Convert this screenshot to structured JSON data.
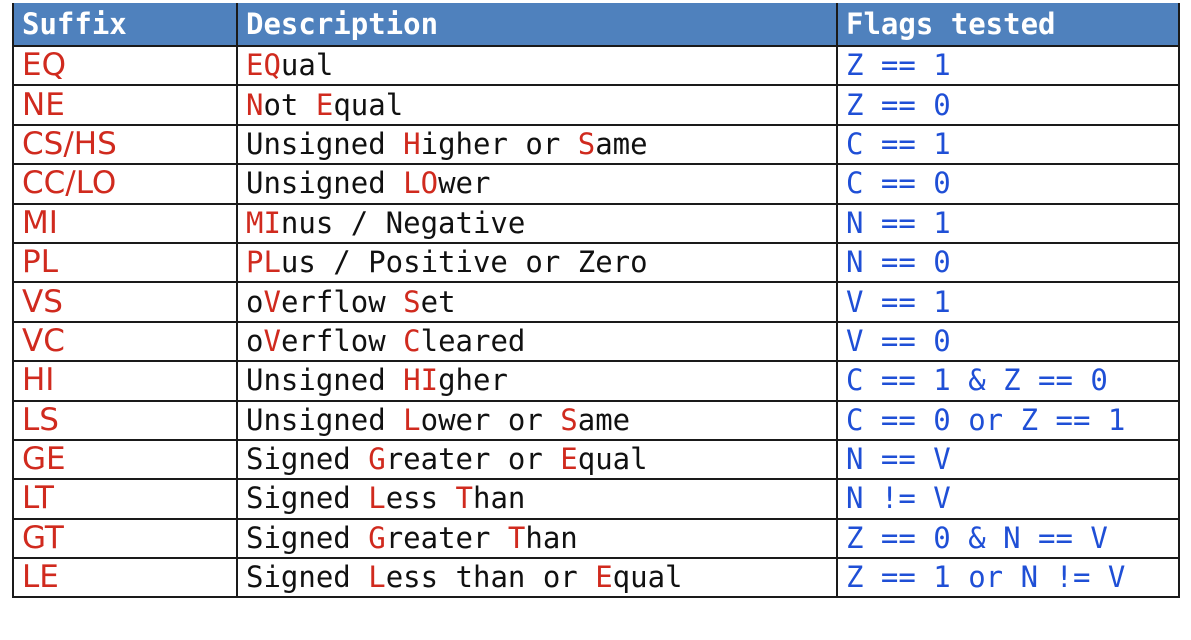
{
  "headers": {
    "suffix": "Suffix",
    "description": "Description",
    "flags": "Flags tested"
  },
  "colors": {
    "header_bg": "#4f81bd",
    "header_text": "#ffffff",
    "suffix_text": "#d02a1e",
    "highlight_text": "#d02a1e",
    "flags_text": "#1f4fd6",
    "border": "#1a1a1a"
  },
  "rows": [
    {
      "suffix": "EQ",
      "description": [
        [
          "EQ",
          true
        ],
        [
          "ual",
          false
        ]
      ],
      "flags": "Z == 1"
    },
    {
      "suffix": "NE",
      "description": [
        [
          "N",
          true
        ],
        [
          "ot ",
          false
        ],
        [
          "E",
          true
        ],
        [
          "qual",
          false
        ]
      ],
      "flags": "Z == 0"
    },
    {
      "suffix": "CS/HS",
      "description": [
        [
          "Unsigned ",
          false
        ],
        [
          "H",
          true
        ],
        [
          "igher or ",
          false
        ],
        [
          "S",
          true
        ],
        [
          "ame",
          false
        ]
      ],
      "flags": "C == 1"
    },
    {
      "suffix": "CC/LO",
      "description": [
        [
          "Unsigned ",
          false
        ],
        [
          "LO",
          true
        ],
        [
          "wer",
          false
        ]
      ],
      "flags": "C == 0"
    },
    {
      "suffix": "MI",
      "description": [
        [
          "MI",
          true
        ],
        [
          "nus / Negative",
          false
        ]
      ],
      "flags": "N == 1"
    },
    {
      "suffix": "PL",
      "description": [
        [
          "PL",
          true
        ],
        [
          "us / Positive or Zero",
          false
        ]
      ],
      "flags": "N == 0"
    },
    {
      "suffix": "VS",
      "description": [
        [
          "o",
          false
        ],
        [
          "V",
          true
        ],
        [
          "erflow ",
          false
        ],
        [
          "S",
          true
        ],
        [
          "et",
          false
        ]
      ],
      "flags": "V == 1"
    },
    {
      "suffix": "VC",
      "description": [
        [
          "o",
          false
        ],
        [
          "V",
          true
        ],
        [
          "erflow ",
          false
        ],
        [
          "C",
          true
        ],
        [
          "leared",
          false
        ]
      ],
      "flags": "V == 0"
    },
    {
      "suffix": "HI",
      "description": [
        [
          "Unsigned ",
          false
        ],
        [
          "HI",
          true
        ],
        [
          "gher",
          false
        ]
      ],
      "flags": "C == 1 & Z == 0"
    },
    {
      "suffix": "LS",
      "description": [
        [
          "Unsigned ",
          false
        ],
        [
          "L",
          true
        ],
        [
          "ower or ",
          false
        ],
        [
          "S",
          true
        ],
        [
          "ame",
          false
        ]
      ],
      "flags": "C == 0 or Z == 1"
    },
    {
      "suffix": "GE",
      "description": [
        [
          "Signed ",
          false
        ],
        [
          "G",
          true
        ],
        [
          "reater or ",
          false
        ],
        [
          "E",
          true
        ],
        [
          "qual",
          false
        ]
      ],
      "flags": "N == V"
    },
    {
      "suffix": "LT",
      "description": [
        [
          "Signed ",
          false
        ],
        [
          "L",
          true
        ],
        [
          "ess ",
          false
        ],
        [
          "T",
          true
        ],
        [
          "han",
          false
        ]
      ],
      "flags": "N != V"
    },
    {
      "suffix": "GT",
      "description": [
        [
          "Signed ",
          false
        ],
        [
          "G",
          true
        ],
        [
          "reater ",
          false
        ],
        [
          "T",
          true
        ],
        [
          "han",
          false
        ]
      ],
      "flags": "Z == 0 & N == V"
    },
    {
      "suffix": "LE",
      "description": [
        [
          "Signed ",
          false
        ],
        [
          "L",
          true
        ],
        [
          "ess than or ",
          false
        ],
        [
          "E",
          true
        ],
        [
          "qual",
          false
        ]
      ],
      "flags": "Z == 1 or N != V"
    }
  ]
}
